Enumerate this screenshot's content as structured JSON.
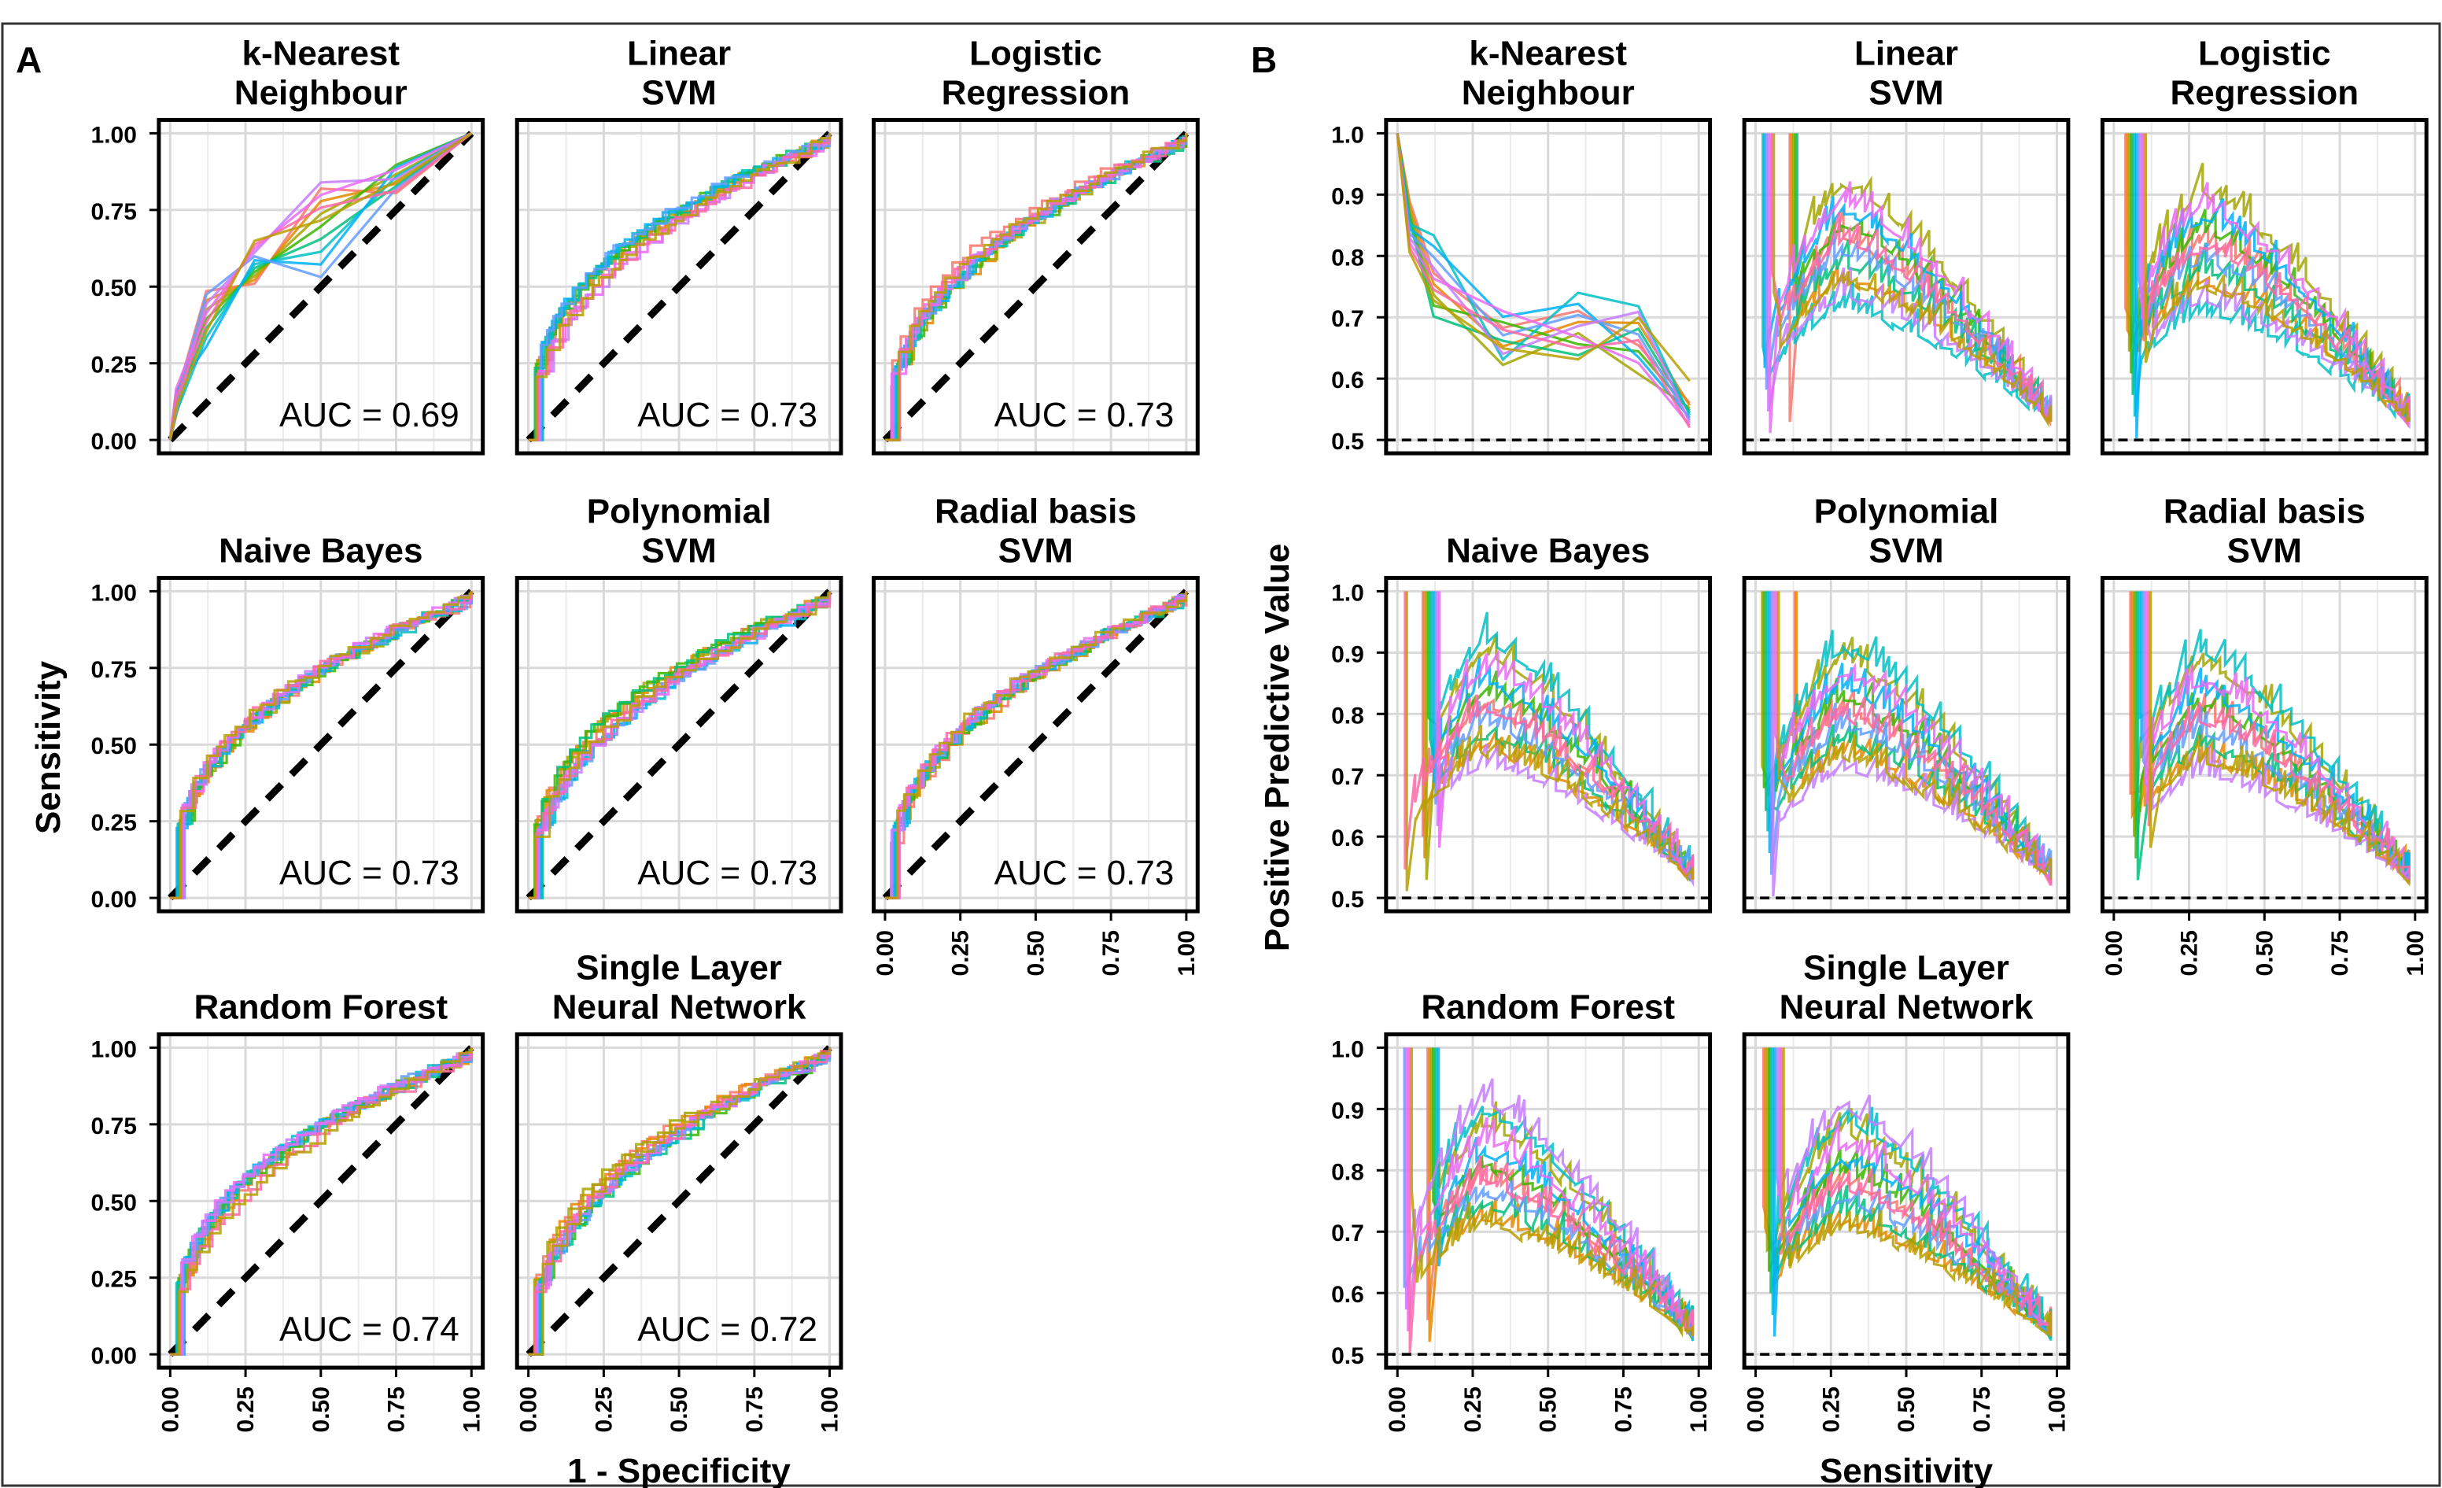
{
  "panel_labels": [
    "A",
    "B"
  ],
  "x_tick_labels": [
    "0.00",
    "0.25",
    "0.50",
    "0.75",
    "1.00"
  ],
  "roc_y_tick_labels": [
    "0.00",
    "0.25",
    "0.50",
    "0.75",
    "1.00"
  ],
  "pr_y_tick_labels": [
    "0.5",
    "0.6",
    "0.7",
    "0.8",
    "0.9",
    "1.0"
  ],
  "axis_labels": {
    "roc_x": "1 - Specificity",
    "roc_y": "Sensitivity",
    "pr_x": "Sensitivity",
    "pr_y": "Positive Predictive Value"
  },
  "models": [
    {
      "title_lines": [
        "k-Nearest",
        "Neighbour"
      ],
      "auc_label": "AUC = 0.69"
    },
    {
      "title_lines": [
        "Linear",
        "SVM"
      ],
      "auc_label": "AUC = 0.73"
    },
    {
      "title_lines": [
        "Logistic",
        "Regression"
      ],
      "auc_label": "AUC = 0.73"
    },
    {
      "title_lines": [
        "Naive Bayes"
      ],
      "auc_label": "AUC = 0.73"
    },
    {
      "title_lines": [
        "Polynomial",
        "SVM"
      ],
      "auc_label": "AUC = 0.73"
    },
    {
      "title_lines": [
        "Radial basis",
        "SVM"
      ],
      "auc_label": "AUC = 0.73"
    },
    {
      "title_lines": [
        "Random Forest"
      ],
      "auc_label": "AUC = 0.74"
    },
    {
      "title_lines": [
        "Single Layer",
        "Neural Network"
      ],
      "auc_label": "AUC = 0.72"
    }
  ],
  "series_colors": [
    "#F8766D",
    "#E58700",
    "#A3A500",
    "#39B600",
    "#00BF7D",
    "#00BFC4",
    "#00B0F6",
    "#619CFF",
    "#C77CFF",
    "#E76BF3",
    "#FF67A4",
    "#B79F00"
  ],
  "chart_data": [
    {
      "type": "line",
      "panel": "A",
      "x_range": [
        0,
        1
      ],
      "ylim": [
        0,
        1
      ],
      "grid": true,
      "reference_line": {
        "from": [
          0,
          0
        ],
        "to": [
          1,
          1
        ],
        "style": "dashed"
      },
      "facets": [
        {
          "auc": 0.69,
          "curve_shape": "knn",
          "n_curves": 12
        },
        {
          "auc": 0.73,
          "curve_shape": "smooth",
          "n_curves": 12
        },
        {
          "auc": 0.73,
          "curve_shape": "smooth",
          "n_curves": 12
        },
        {
          "auc": 0.73,
          "curve_shape": "smooth",
          "n_curves": 12
        },
        {
          "auc": 0.73,
          "curve_shape": "smooth",
          "n_curves": 12
        },
        {
          "auc": 0.73,
          "curve_shape": "smooth",
          "n_curves": 12
        },
        {
          "auc": 0.74,
          "curve_shape": "smooth",
          "n_curves": 12
        },
        {
          "auc": 0.72,
          "curve_shape": "smooth",
          "n_curves": 12
        }
      ]
    },
    {
      "type": "line",
      "panel": "B",
      "x_range": [
        0,
        1
      ],
      "ylim": [
        0.5,
        1.0
      ],
      "grid": true,
      "reference_line": {
        "y": 0.5,
        "style": "dashed"
      },
      "facets": [
        {
          "curve_shape": "knn",
          "n_curves": 12
        },
        {
          "curve_shape": "smooth",
          "n_curves": 12
        },
        {
          "curve_shape": "smooth",
          "n_curves": 12
        },
        {
          "curve_shape": "smooth",
          "n_curves": 12
        },
        {
          "curve_shape": "smooth",
          "n_curves": 12
        },
        {
          "curve_shape": "smooth",
          "n_curves": 12
        },
        {
          "curve_shape": "smooth",
          "n_curves": 12
        },
        {
          "curve_shape": "smooth",
          "n_curves": 12
        }
      ]
    }
  ]
}
